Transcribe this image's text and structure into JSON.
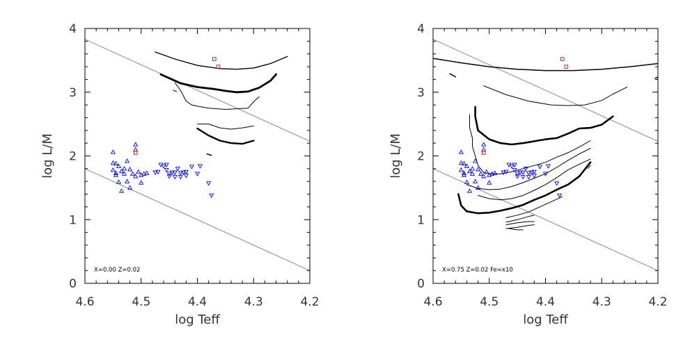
{
  "chart_data": [
    {
      "type": "line",
      "xlabel": "log Teff",
      "ylabel": "log  L/M",
      "xlim": [
        4.6,
        4.2
      ],
      "ylim": [
        0,
        4
      ],
      "xticks": [
        "4.6",
        "4.5",
        "4.4",
        "4.3",
        "4.2"
      ],
      "yticks": [
        "0",
        "1",
        "2",
        "3",
        "4"
      ],
      "annotation": "X=0.00  Z=0.02",
      "reference_lines": [
        {
          "x": [
            4.6,
            4.2
          ],
          "y": [
            3.83,
            2.23
          ]
        },
        {
          "x": [
            4.6,
            4.2
          ],
          "y": [
            1.8,
            0.2
          ]
        }
      ],
      "series": [
        {
          "width": 1.4,
          "x": [
            4.475,
            4.44,
            4.4,
            4.36,
            4.33,
            4.3,
            4.27,
            4.24
          ],
          "y": [
            3.63,
            3.52,
            3.42,
            3.37,
            3.36,
            3.38,
            3.45,
            3.56
          ]
        },
        {
          "width": 2.8,
          "x": [
            4.465,
            4.43,
            4.4,
            4.37,
            4.35,
            4.33,
            4.31,
            4.29,
            4.27,
            4.26
          ],
          "y": [
            3.28,
            3.14,
            3.08,
            3.05,
            3.02,
            3.0,
            3.01,
            3.07,
            3.18,
            3.28
          ]
        },
        {
          "width": 1.0,
          "x": [
            4.44,
            4.43,
            4.42,
            4.41,
            4.4,
            4.38,
            4.35,
            4.33,
            4.31,
            4.3,
            4.29
          ],
          "y": [
            3.15,
            3.03,
            2.86,
            2.8,
            2.78,
            2.75,
            2.73,
            2.74,
            2.75,
            2.85,
            2.93
          ]
        },
        {
          "width": 1.0,
          "x": [
            4.4,
            4.38,
            4.36,
            4.34,
            4.32,
            4.3
          ],
          "y": [
            2.5,
            2.5,
            2.44,
            2.42,
            2.44,
            2.47
          ]
        },
        {
          "width": 2.4,
          "x": [
            4.4,
            4.38,
            4.36,
            4.34,
            4.32,
            4.3
          ],
          "y": [
            2.43,
            2.32,
            2.24,
            2.2,
            2.19,
            2.24
          ]
        },
        {
          "width": 1.0,
          "x": [
            4.443,
            4.437
          ],
          "y": [
            3.03,
            3.01
          ]
        },
        {
          "width": 1.5,
          "x": [
            4.383,
            4.375
          ],
          "y": [
            2.03,
            2.01
          ]
        }
      ],
      "points_up": {
        "color": "#0000ff",
        "x": [
          4.55,
          4.55,
          4.55,
          4.545,
          4.545,
          4.545,
          4.54,
          4.54,
          4.535,
          4.535,
          4.53,
          4.53,
          4.525,
          4.525,
          4.52,
          4.52,
          4.515,
          4.51,
          4.51,
          4.505,
          4.5,
          4.495,
          4.49,
          4.5,
          4.51
        ],
        "y": [
          2.06,
          1.89,
          1.78,
          1.88,
          1.73,
          1.7,
          1.84,
          1.59,
          1.76,
          1.45,
          1.8,
          1.72,
          1.92,
          1.6,
          1.79,
          1.5,
          1.72,
          1.68,
          2.18,
          1.75,
          1.7,
          1.72,
          1.73,
          1.58,
          2.1
        ]
      },
      "points_down": {
        "color": "#0000ff",
        "x": [
          4.475,
          4.47,
          4.465,
          4.46,
          4.455,
          4.455,
          4.45,
          4.45,
          4.445,
          4.44,
          4.44,
          4.435,
          4.43,
          4.43,
          4.425,
          4.42,
          4.42,
          4.41,
          4.4,
          4.395,
          4.38,
          4.375
        ],
        "y": [
          1.74,
          1.75,
          1.86,
          1.84,
          1.86,
          1.78,
          1.72,
          1.68,
          1.74,
          1.74,
          1.67,
          1.8,
          1.73,
          1.67,
          1.74,
          1.75,
          1.69,
          1.83,
          1.72,
          1.84,
          1.57,
          1.38
        ]
      },
      "points_square": {
        "color": "#cc0000",
        "x": [
          4.37,
          4.363,
          4.51
        ],
        "y": [
          3.52,
          3.4,
          2.05
        ]
      }
    },
    {
      "type": "line",
      "xlabel": "log Teff",
      "ylabel": "log  L/M",
      "xlim": [
        4.6,
        4.2
      ],
      "ylim": [
        0,
        4
      ],
      "xticks": [
        "4.6",
        "4.5",
        "4.4",
        "4.3",
        "4.2"
      ],
      "yticks": [
        "0",
        "1",
        "2",
        "3",
        "4"
      ],
      "annotation": "X=0.75  Z=0.02  Fe=x10",
      "reference_lines": [
        {
          "x": [
            4.6,
            4.2
          ],
          "y": [
            3.83,
            2.23
          ]
        },
        {
          "x": [
            4.6,
            4.2
          ],
          "y": [
            1.8,
            0.2
          ]
        }
      ],
      "series": [
        {
          "width": 1.5,
          "x": [
            4.6,
            4.55,
            4.5,
            4.45,
            4.4,
            4.35,
            4.3,
            4.25,
            4.2
          ],
          "y": [
            3.53,
            3.46,
            3.4,
            3.36,
            3.34,
            3.34,
            3.36,
            3.4,
            3.45
          ]
        },
        {
          "width": 1.0,
          "x": [
            4.51,
            4.47,
            4.43,
            4.39,
            4.36,
            4.33,
            4.3,
            4.28,
            4.255
          ],
          "y": [
            3.1,
            2.96,
            2.86,
            2.8,
            2.79,
            2.8,
            2.87,
            2.97,
            3.08
          ]
        },
        {
          "width": 1.5,
          "x": [
            4.57,
            4.56
          ],
          "y": [
            3.29,
            3.24
          ]
        },
        {
          "width": 1.5,
          "x": [
            4.205,
            4.195
          ],
          "y": [
            3.22,
            3.25
          ]
        },
        {
          "width": 2.6,
          "x": [
            4.525,
            4.525,
            4.52,
            4.5,
            4.48,
            4.46,
            4.44,
            4.42,
            4.4,
            4.38,
            4.36,
            4.34,
            4.32,
            4.3,
            4.28
          ],
          "y": [
            2.77,
            2.62,
            2.4,
            2.26,
            2.2,
            2.18,
            2.2,
            2.23,
            2.26,
            2.28,
            2.35,
            2.43,
            2.44,
            2.49,
            2.62
          ]
        },
        {
          "width": 1.0,
          "x": [
            4.535,
            4.535,
            4.53,
            4.53,
            4.525,
            4.52,
            4.51,
            4.5,
            4.48,
            4.46,
            4.44,
            4.42,
            4.4,
            4.38,
            4.36,
            4.34,
            4.32
          ],
          "y": [
            2.65,
            2.44,
            2.28,
            2.15,
            2.0,
            1.85,
            1.74,
            1.72,
            1.72,
            1.75,
            1.8,
            1.85,
            1.9,
            1.98,
            2.05,
            2.14,
            2.24
          ]
        },
        {
          "width": 1.0,
          "x": [
            4.54,
            4.52,
            4.5,
            4.48,
            4.46,
            4.44,
            4.42,
            4.4,
            4.38,
            4.36,
            4.34,
            4.32
          ],
          "y": [
            1.55,
            1.49,
            1.47,
            1.48,
            1.52,
            1.58,
            1.65,
            1.72,
            1.82,
            1.93,
            2.03,
            2.12
          ]
        },
        {
          "width": 1.0,
          "x": [
            4.52,
            4.5,
            4.48,
            4.46,
            4.44,
            4.42,
            4.4,
            4.38,
            4.36,
            4.34,
            4.32
          ],
          "y": [
            1.38,
            1.33,
            1.31,
            1.33,
            1.38,
            1.46,
            1.55,
            1.66,
            1.78,
            1.87,
            1.95
          ]
        },
        {
          "width": 2.6,
          "x": [
            4.555,
            4.55,
            4.54,
            4.52,
            4.5,
            4.48,
            4.46,
            4.44,
            4.42,
            4.4,
            4.38,
            4.36,
            4.34,
            4.32
          ],
          "y": [
            1.4,
            1.22,
            1.13,
            1.1,
            1.11,
            1.14,
            1.18,
            1.23,
            1.31,
            1.38,
            1.47,
            1.55,
            1.68,
            1.9
          ]
        },
        {
          "width": 1.0,
          "x": [
            4.47,
            4.45,
            4.43,
            4.41,
            4.39,
            4.37
          ],
          "y": [
            1.03,
            1.07,
            1.12,
            1.2,
            1.28,
            1.36
          ]
        },
        {
          "width": 1.0,
          "x": [
            4.47,
            4.45,
            4.43,
            4.42
          ],
          "y": [
            0.92,
            0.95,
            0.97,
            0.97
          ]
        },
        {
          "width": 1.0,
          "x": [
            4.47,
            4.45,
            4.43,
            4.42
          ],
          "y": [
            0.86,
            0.88,
            0.91,
            0.92
          ]
        },
        {
          "width": 1.0,
          "x": [
            4.47,
            4.45,
            4.43,
            4.42
          ],
          "y": [
            0.96,
            1.0,
            1.05,
            1.07
          ]
        },
        {
          "width": 1.0,
          "x": [
            4.465,
            4.45,
            4.44
          ],
          "y": [
            0.86,
            0.84,
            0.84
          ]
        },
        {
          "width": 1.0,
          "x": [
            4.325,
            4.32
          ],
          "y": [
            1.8,
            1.85
          ]
        }
      ],
      "points_up": {
        "color": "#0000ff",
        "x": [
          4.55,
          4.55,
          4.55,
          4.545,
          4.545,
          4.545,
          4.54,
          4.54,
          4.535,
          4.535,
          4.53,
          4.53,
          4.525,
          4.525,
          4.52,
          4.52,
          4.515,
          4.51,
          4.51,
          4.505,
          4.5,
          4.495,
          4.49,
          4.5,
          4.51
        ],
        "y": [
          2.06,
          1.89,
          1.78,
          1.88,
          1.73,
          1.7,
          1.84,
          1.59,
          1.76,
          1.45,
          1.8,
          1.72,
          1.92,
          1.6,
          1.79,
          1.5,
          1.72,
          1.68,
          2.18,
          1.75,
          1.7,
          1.72,
          1.73,
          1.58,
          2.1
        ]
      },
      "points_down": {
        "color": "#0000ff",
        "x": [
          4.475,
          4.47,
          4.465,
          4.46,
          4.455,
          4.455,
          4.45,
          4.45,
          4.445,
          4.44,
          4.44,
          4.435,
          4.43,
          4.43,
          4.425,
          4.42,
          4.42,
          4.41,
          4.4,
          4.395,
          4.38,
          4.375
        ],
        "y": [
          1.74,
          1.75,
          1.86,
          1.84,
          1.86,
          1.78,
          1.72,
          1.68,
          1.74,
          1.74,
          1.67,
          1.8,
          1.73,
          1.67,
          1.74,
          1.75,
          1.69,
          1.83,
          1.72,
          1.84,
          1.57,
          1.38
        ]
      },
      "points_square": {
        "color": "#cc0000",
        "x": [
          4.37,
          4.363,
          4.51
        ],
        "y": [
          3.52,
          3.4,
          2.05
        ]
      }
    }
  ]
}
